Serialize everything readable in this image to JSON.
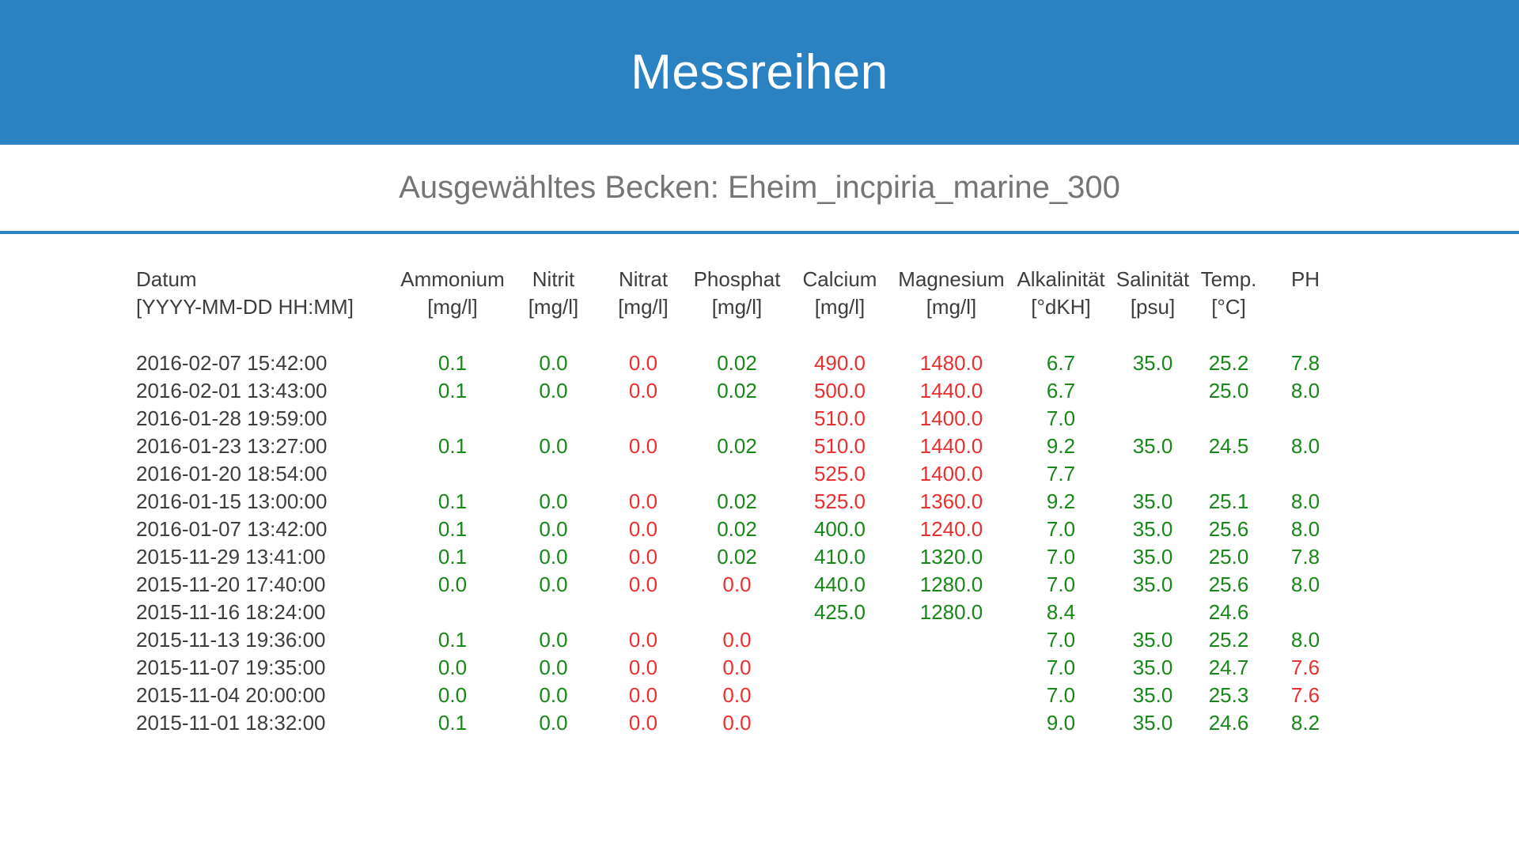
{
  "header": {
    "title": "Messreihen"
  },
  "subheader": {
    "selected_tank_text": "Ausgewähltes Becken: Eheim_incpiria_marine_300"
  },
  "colors": {
    "banner_blue": "#2b82c2",
    "divider_blue": "#2b82c2",
    "value_ok_green": "#178717",
    "value_alert_red": "#e93030",
    "heading_gray": "#3d3d3d",
    "subtitle_gray": "#757575"
  },
  "table": {
    "columns": [
      {
        "name": "Datum",
        "unit": "[YYYY-MM-DD HH:MM]"
      },
      {
        "name": "Ammonium",
        "unit": "[mg/l]"
      },
      {
        "name": "Nitrit",
        "unit": "[mg/l]"
      },
      {
        "name": "Nitrat",
        "unit": "[mg/l]"
      },
      {
        "name": "Phosphat",
        "unit": "[mg/l]"
      },
      {
        "name": "Calcium",
        "unit": "[mg/l]"
      },
      {
        "name": "Magnesium",
        "unit": "[mg/l]"
      },
      {
        "name": "Alkalinität",
        "unit": "[°dKH]"
      },
      {
        "name": "Salinität",
        "unit": "[psu]"
      },
      {
        "name": "Temp.",
        "unit": "[°C]"
      },
      {
        "name": "PH",
        "unit": ""
      }
    ],
    "rows": [
      {
        "datum": "2016-02-07 15:42:00",
        "cells": [
          [
            "0.1",
            "g"
          ],
          [
            "0.0",
            "g"
          ],
          [
            "0.0",
            "r"
          ],
          [
            "0.02",
            "g"
          ],
          [
            "490.0",
            "r"
          ],
          [
            "1480.0",
            "r"
          ],
          [
            "6.7",
            "g"
          ],
          [
            "35.0",
            "g"
          ],
          [
            "25.2",
            "g"
          ],
          [
            "7.8",
            "g"
          ]
        ]
      },
      {
        "datum": "2016-02-01 13:43:00",
        "cells": [
          [
            "0.1",
            "g"
          ],
          [
            "0.0",
            "g"
          ],
          [
            "0.0",
            "r"
          ],
          [
            "0.02",
            "g"
          ],
          [
            "500.0",
            "r"
          ],
          [
            "1440.0",
            "r"
          ],
          [
            "6.7",
            "g"
          ],
          [
            "",
            ""
          ],
          [
            "25.0",
            "g"
          ],
          [
            "8.0",
            "g"
          ]
        ]
      },
      {
        "datum": "2016-01-28 19:59:00",
        "cells": [
          [
            "",
            ""
          ],
          [
            "",
            ""
          ],
          [
            "",
            ""
          ],
          [
            "",
            ""
          ],
          [
            "510.0",
            "r"
          ],
          [
            "1400.0",
            "r"
          ],
          [
            "7.0",
            "g"
          ],
          [
            "",
            ""
          ],
          [
            "",
            ""
          ],
          [
            "",
            ""
          ]
        ]
      },
      {
        "datum": "2016-01-23 13:27:00",
        "cells": [
          [
            "0.1",
            "g"
          ],
          [
            "0.0",
            "g"
          ],
          [
            "0.0",
            "r"
          ],
          [
            "0.02",
            "g"
          ],
          [
            "510.0",
            "r"
          ],
          [
            "1440.0",
            "r"
          ],
          [
            "9.2",
            "g"
          ],
          [
            "35.0",
            "g"
          ],
          [
            "24.5",
            "g"
          ],
          [
            "8.0",
            "g"
          ]
        ]
      },
      {
        "datum": "2016-01-20 18:54:00",
        "cells": [
          [
            "",
            ""
          ],
          [
            "",
            ""
          ],
          [
            "",
            ""
          ],
          [
            "",
            ""
          ],
          [
            "525.0",
            "r"
          ],
          [
            "1400.0",
            "r"
          ],
          [
            "7.7",
            "g"
          ],
          [
            "",
            ""
          ],
          [
            "",
            ""
          ],
          [
            "",
            ""
          ]
        ]
      },
      {
        "datum": "2016-01-15 13:00:00",
        "cells": [
          [
            "0.1",
            "g"
          ],
          [
            "0.0",
            "g"
          ],
          [
            "0.0",
            "r"
          ],
          [
            "0.02",
            "g"
          ],
          [
            "525.0",
            "r"
          ],
          [
            "1360.0",
            "r"
          ],
          [
            "9.2",
            "g"
          ],
          [
            "35.0",
            "g"
          ],
          [
            "25.1",
            "g"
          ],
          [
            "8.0",
            "g"
          ]
        ]
      },
      {
        "datum": "2016-01-07 13:42:00",
        "cells": [
          [
            "0.1",
            "g"
          ],
          [
            "0.0",
            "g"
          ],
          [
            "0.0",
            "r"
          ],
          [
            "0.02",
            "g"
          ],
          [
            "400.0",
            "g"
          ],
          [
            "1240.0",
            "r"
          ],
          [
            "7.0",
            "g"
          ],
          [
            "35.0",
            "g"
          ],
          [
            "25.6",
            "g"
          ],
          [
            "8.0",
            "g"
          ]
        ]
      },
      {
        "datum": "2015-11-29 13:41:00",
        "cells": [
          [
            "0.1",
            "g"
          ],
          [
            "0.0",
            "g"
          ],
          [
            "0.0",
            "r"
          ],
          [
            "0.02",
            "g"
          ],
          [
            "410.0",
            "g"
          ],
          [
            "1320.0",
            "g"
          ],
          [
            "7.0",
            "g"
          ],
          [
            "35.0",
            "g"
          ],
          [
            "25.0",
            "g"
          ],
          [
            "7.8",
            "g"
          ]
        ]
      },
      {
        "datum": "2015-11-20 17:40:00",
        "cells": [
          [
            "0.0",
            "g"
          ],
          [
            "0.0",
            "g"
          ],
          [
            "0.0",
            "r"
          ],
          [
            "0.0",
            "r"
          ],
          [
            "440.0",
            "g"
          ],
          [
            "1280.0",
            "g"
          ],
          [
            "7.0",
            "g"
          ],
          [
            "35.0",
            "g"
          ],
          [
            "25.6",
            "g"
          ],
          [
            "8.0",
            "g"
          ]
        ]
      },
      {
        "datum": "2015-11-16 18:24:00",
        "cells": [
          [
            "",
            ""
          ],
          [
            "",
            ""
          ],
          [
            "",
            ""
          ],
          [
            "",
            ""
          ],
          [
            "425.0",
            "g"
          ],
          [
            "1280.0",
            "g"
          ],
          [
            "8.4",
            "g"
          ],
          [
            "",
            ""
          ],
          [
            "24.6",
            "g"
          ],
          [
            "",
            ""
          ]
        ]
      },
      {
        "datum": "2015-11-13 19:36:00",
        "cells": [
          [
            "0.1",
            "g"
          ],
          [
            "0.0",
            "g"
          ],
          [
            "0.0",
            "r"
          ],
          [
            "0.0",
            "r"
          ],
          [
            "",
            ""
          ],
          [
            "",
            ""
          ],
          [
            "7.0",
            "g"
          ],
          [
            "35.0",
            "g"
          ],
          [
            "25.2",
            "g"
          ],
          [
            "8.0",
            "g"
          ]
        ]
      },
      {
        "datum": "2015-11-07 19:35:00",
        "cells": [
          [
            "0.0",
            "g"
          ],
          [
            "0.0",
            "g"
          ],
          [
            "0.0",
            "r"
          ],
          [
            "0.0",
            "r"
          ],
          [
            "",
            ""
          ],
          [
            "",
            ""
          ],
          [
            "7.0",
            "g"
          ],
          [
            "35.0",
            "g"
          ],
          [
            "24.7",
            "g"
          ],
          [
            "7.6",
            "r"
          ]
        ]
      },
      {
        "datum": "2015-11-04 20:00:00",
        "cells": [
          [
            "0.0",
            "g"
          ],
          [
            "0.0",
            "g"
          ],
          [
            "0.0",
            "r"
          ],
          [
            "0.0",
            "r"
          ],
          [
            "",
            ""
          ],
          [
            "",
            ""
          ],
          [
            "7.0",
            "g"
          ],
          [
            "35.0",
            "g"
          ],
          [
            "25.3",
            "g"
          ],
          [
            "7.6",
            "r"
          ]
        ]
      },
      {
        "datum": "2015-11-01 18:32:00",
        "cells": [
          [
            "0.1",
            "g"
          ],
          [
            "0.0",
            "g"
          ],
          [
            "0.0",
            "r"
          ],
          [
            "0.0",
            "r"
          ],
          [
            "",
            ""
          ],
          [
            "",
            ""
          ],
          [
            "9.0",
            "g"
          ],
          [
            "35.0",
            "g"
          ],
          [
            "24.6",
            "g"
          ],
          [
            "8.2",
            "g"
          ]
        ]
      }
    ]
  }
}
